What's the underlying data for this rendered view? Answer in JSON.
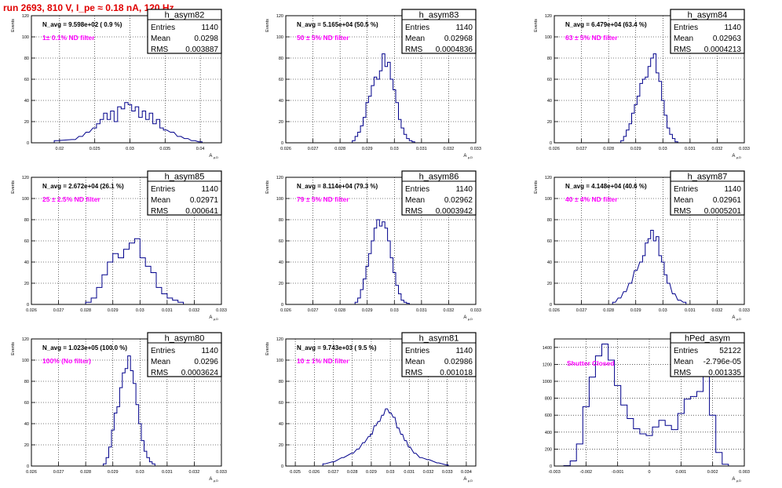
{
  "page_title": "run 2693,   810 V, I_pe ≈ 0.18 nA, 120 Hz",
  "colors": {
    "histogram": "#00008b",
    "title": "#e00000",
    "annotation": "#ff00ff",
    "grid": "#000000",
    "frame": "#000000"
  },
  "chart_data": [
    {
      "type": "histogram",
      "name": "h_asym82",
      "stats": {
        "Entries": "1140",
        "Mean": "0.0298",
        "RMS": "0.003887"
      },
      "navg_text": "N_avg = 9.598e+02 ( 0.9 %)",
      "filter_text": "1± 0.1% ND filter",
      "xlim": [
        0.016,
        0.043
      ],
      "xticks": [
        "0.02",
        "0.025",
        "0.03",
        "0.035",
        "0.04"
      ],
      "ylim": [
        0,
        120
      ],
      "yticks": [
        "0",
        "20",
        "40",
        "60",
        "80",
        "100",
        "120"
      ],
      "ylabel": "Events",
      "xlabel": "A_μ,D",
      "x": [
        0.0195,
        0.022,
        0.023,
        0.024,
        0.025,
        0.0255,
        0.026,
        0.0265,
        0.027,
        0.0275,
        0.028,
        0.0285,
        0.029,
        0.0295,
        0.03,
        0.0305,
        0.031,
        0.0315,
        0.032,
        0.0325,
        0.033,
        0.0335,
        0.034,
        0.0345,
        0.035,
        0.036,
        0.037,
        0.038,
        0.039,
        0.04
      ],
      "y": [
        2,
        3,
        6,
        10,
        14,
        18,
        22,
        28,
        22,
        30,
        20,
        34,
        32,
        38,
        36,
        30,
        34,
        24,
        30,
        22,
        28,
        18,
        22,
        14,
        12,
        10,
        6,
        4,
        2,
        1
      ]
    },
    {
      "type": "histogram",
      "name": "h_asym83",
      "stats": {
        "Entries": "1140",
        "Mean": "0.02968",
        "RMS": "0.0004836"
      },
      "navg_text": "N_avg = 5.165e+04 (50.5 %)",
      "filter_text": "50 ± 5% ND filter",
      "xlim": [
        0.026,
        0.033
      ],
      "xticks": [
        "0.026",
        "0.027",
        "0.028",
        "0.029",
        "0.03",
        "0.031",
        "0.032",
        "0.033"
      ],
      "ylim": [
        0,
        120
      ],
      "yticks": [
        "0",
        "20",
        "40",
        "60",
        "80",
        "100",
        "120"
      ],
      "ylabel": "Events",
      "xlabel": "A_μ,D",
      "x": [
        0.0285,
        0.0286,
        0.0287,
        0.0288,
        0.0289,
        0.029,
        0.0291,
        0.0292,
        0.0293,
        0.0294,
        0.0295,
        0.0296,
        0.0297,
        0.0298,
        0.0299,
        0.03,
        0.0301,
        0.0302,
        0.0303,
        0.0304,
        0.0305,
        0.0306,
        0.0307
      ],
      "y": [
        2,
        6,
        10,
        16,
        24,
        38,
        44,
        54,
        62,
        60,
        68,
        84,
        72,
        76,
        60,
        50,
        38,
        22,
        14,
        8,
        4,
        2,
        1
      ]
    },
    {
      "type": "histogram",
      "name": "h_asym84",
      "stats": {
        "Entries": "1140",
        "Mean": "0.02963",
        "RMS": "0.0004213"
      },
      "navg_text": "N_avg = 6.479e+04 (63.4 %)",
      "filter_text": "63 ± 5% ND filter",
      "xlim": [
        0.026,
        0.033
      ],
      "xticks": [
        "0.026",
        "0.027",
        "0.028",
        "0.029",
        "0.03",
        "0.031",
        "0.032",
        "0.033"
      ],
      "ylim": [
        0,
        120
      ],
      "yticks": [
        "0",
        "20",
        "40",
        "60",
        "80",
        "100",
        "120"
      ],
      "ylabel": "Events",
      "xlabel": "A_μ,D",
      "x": [
        0.0285,
        0.0286,
        0.0287,
        0.0288,
        0.0289,
        0.029,
        0.0291,
        0.0292,
        0.0293,
        0.0294,
        0.0295,
        0.0296,
        0.0297,
        0.0298,
        0.0299,
        0.03,
        0.0301,
        0.0302,
        0.0303,
        0.0304,
        0.0305
      ],
      "y": [
        2,
        6,
        12,
        18,
        28,
        36,
        44,
        56,
        60,
        62,
        72,
        80,
        84,
        66,
        58,
        40,
        26,
        14,
        8,
        4,
        1
      ]
    },
    {
      "type": "histogram",
      "name": "h_asym85",
      "stats": {
        "Entries": "1140",
        "Mean": "0.02971",
        "RMS": "0.000641"
      },
      "navg_text": "N_avg = 2.672e+04 (26.1 %)",
      "filter_text": "25 ± 2.5% ND filter",
      "xlim": [
        0.026,
        0.033
      ],
      "xticks": [
        "0.026",
        "0.027",
        "0.028",
        "0.029",
        "0.03",
        "0.031",
        "0.032",
        "0.033"
      ],
      "ylim": [
        0,
        120
      ],
      "yticks": [
        "0",
        "20",
        "40",
        "60",
        "80",
        "100",
        "120"
      ],
      "ylabel": "Events",
      "xlabel": "A_μ,D",
      "x": [
        0.0281,
        0.0283,
        0.0285,
        0.0287,
        0.0289,
        0.0291,
        0.0293,
        0.0295,
        0.0297,
        0.0299,
        0.0301,
        0.0303,
        0.0305,
        0.0307,
        0.0309,
        0.0311,
        0.0313,
        0.0315
      ],
      "y": [
        2,
        6,
        16,
        28,
        40,
        48,
        44,
        52,
        58,
        62,
        44,
        36,
        30,
        16,
        10,
        6,
        4,
        2
      ]
    },
    {
      "type": "histogram",
      "name": "h_asym86",
      "stats": {
        "Entries": "1140",
        "Mean": "0.02962",
        "RMS": "0.0003942"
      },
      "navg_text": "N_avg = 8.114e+04 (79.3 %)",
      "filter_text": "79 ± 5% ND filter",
      "xlim": [
        0.026,
        0.033
      ],
      "xticks": [
        "0.026",
        "0.027",
        "0.028",
        "0.029",
        "0.03",
        "0.031",
        "0.032",
        "0.033"
      ],
      "ylim": [
        0,
        120
      ],
      "yticks": [
        "0",
        "20",
        "40",
        "60",
        "80",
        "100",
        "120"
      ],
      "ylabel": "Events",
      "xlabel": "A_μ,D",
      "x": [
        0.0286,
        0.0287,
        0.0288,
        0.0289,
        0.029,
        0.0291,
        0.0292,
        0.0293,
        0.0294,
        0.0295,
        0.0296,
        0.0297,
        0.0298,
        0.0299,
        0.03,
        0.0301,
        0.0302,
        0.0303,
        0.0304,
        0.0305
      ],
      "y": [
        2,
        6,
        14,
        24,
        36,
        48,
        60,
        72,
        80,
        74,
        78,
        72,
        60,
        44,
        30,
        18,
        10,
        4,
        2,
        1
      ]
    },
    {
      "type": "histogram",
      "name": "h_asym87",
      "stats": {
        "Entries": "1140",
        "Mean": "0.02961",
        "RMS": "0.0005201"
      },
      "navg_text": "N_avg = 4.148e+04 (40.6 %)",
      "filter_text": "40 ± 4% ND filter",
      "xlim": [
        0.026,
        0.033
      ],
      "xticks": [
        "0.026",
        "0.027",
        "0.028",
        "0.029",
        "0.03",
        "0.031",
        "0.032",
        "0.033"
      ],
      "ylim": [
        0,
        120
      ],
      "yticks": [
        "0",
        "20",
        "40",
        "60",
        "80",
        "100",
        "120"
      ],
      "ylabel": "Events",
      "xlabel": "A_μ,D",
      "x": [
        0.0282,
        0.0284,
        0.0286,
        0.0288,
        0.029,
        0.0292,
        0.0293,
        0.0294,
        0.0295,
        0.0296,
        0.0297,
        0.0298,
        0.0299,
        0.03,
        0.0301,
        0.0302,
        0.0304,
        0.0306,
        0.0308
      ],
      "y": [
        2,
        6,
        12,
        20,
        32,
        40,
        46,
        58,
        62,
        70,
        60,
        64,
        46,
        40,
        28,
        20,
        10,
        4,
        2
      ]
    },
    {
      "type": "histogram",
      "name": "h_asym80",
      "stats": {
        "Entries": "1140",
        "Mean": "0.0296",
        "RMS": "0.0003624"
      },
      "navg_text": "N_avg = 1.023e+05 (100.0 %)",
      "filter_text": "100% (No filter)",
      "xlim": [
        0.026,
        0.033
      ],
      "xticks": [
        "0.026",
        "0.027",
        "0.028",
        "0.029",
        "0.03",
        "0.031",
        "0.032",
        "0.033"
      ],
      "ylim": [
        0,
        120
      ],
      "yticks": [
        "0",
        "20",
        "40",
        "60",
        "80",
        "100",
        "120"
      ],
      "ylabel": "Events",
      "xlabel": "A_μ,D",
      "x": [
        0.0287,
        0.0288,
        0.0289,
        0.029,
        0.0291,
        0.0292,
        0.0293,
        0.0294,
        0.0295,
        0.0296,
        0.0297,
        0.0298,
        0.0299,
        0.03,
        0.0301,
        0.0302,
        0.0303,
        0.0304,
        0.0305
      ],
      "y": [
        2,
        8,
        18,
        34,
        50,
        56,
        74,
        88,
        92,
        104,
        90,
        78,
        58,
        40,
        24,
        14,
        8,
        4,
        2
      ]
    },
    {
      "type": "histogram",
      "name": "h_asym81",
      "stats": {
        "Entries": "1140",
        "Mean": "0.02986",
        "RMS": "0.001018"
      },
      "navg_text": "N_avg = 9.743e+03 ( 9.5 %)",
      "filter_text": "10 ± 1% ND filter",
      "xlim": [
        0.0245,
        0.0345
      ],
      "xticks": [
        "0.025",
        "0.026",
        "0.027",
        "0.028",
        "0.029",
        "0.03",
        "0.031",
        "0.032",
        "0.033",
        "0.034"
      ],
      "ylim": [
        0,
        120
      ],
      "yticks": [
        "0",
        "20",
        "40",
        "60",
        "80",
        "100",
        "120"
      ],
      "ylabel": "Events",
      "xlabel": "A_μ,D",
      "x": [
        0.0265,
        0.027,
        0.0275,
        0.028,
        0.0283,
        0.0286,
        0.0289,
        0.029,
        0.0292,
        0.0294,
        0.0296,
        0.0298,
        0.03,
        0.0302,
        0.0304,
        0.0306,
        0.0308,
        0.031,
        0.0313,
        0.0316,
        0.032,
        0.0325,
        0.033
      ],
      "y": [
        2,
        4,
        8,
        12,
        16,
        22,
        28,
        30,
        38,
        42,
        48,
        54,
        50,
        46,
        36,
        30,
        24,
        18,
        12,
        8,
        6,
        3,
        1
      ]
    },
    {
      "type": "histogram",
      "name": "hPed_asym",
      "stats": {
        "Entries": "52122",
        "Mean": "-2.796e-05",
        "RMS": "0.001335"
      },
      "annotation": "Shutter Closed",
      "xlim": [
        -0.003,
        0.003
      ],
      "xticks": [
        "-0.003",
        "-0.002",
        "-0.001",
        "0",
        "0.001",
        "0.002",
        "0.003"
      ],
      "ylim": [
        0,
        1500
      ],
      "yticks": [
        "0",
        "200",
        "400",
        "600",
        "800",
        "1000",
        "1200",
        "1400"
      ],
      "ylabel": "",
      "xlabel": "A_μ,D",
      "x": [
        -0.0026,
        -0.0024,
        -0.0022,
        -0.002,
        -0.0018,
        -0.0016,
        -0.0014,
        -0.0012,
        -0.001,
        -0.0008,
        -0.0006,
        -0.0004,
        -0.0002,
        0,
        0.0002,
        0.0004,
        0.0006,
        0.0008,
        0.001,
        0.0012,
        0.0014,
        0.0016,
        0.0018,
        0.002,
        0.0022,
        0.0024
      ],
      "y": [
        5,
        60,
        260,
        700,
        1050,
        1300,
        1440,
        1250,
        950,
        720,
        560,
        440,
        380,
        360,
        460,
        540,
        480,
        430,
        620,
        790,
        820,
        880,
        1100,
        600,
        160,
        20
      ]
    }
  ]
}
